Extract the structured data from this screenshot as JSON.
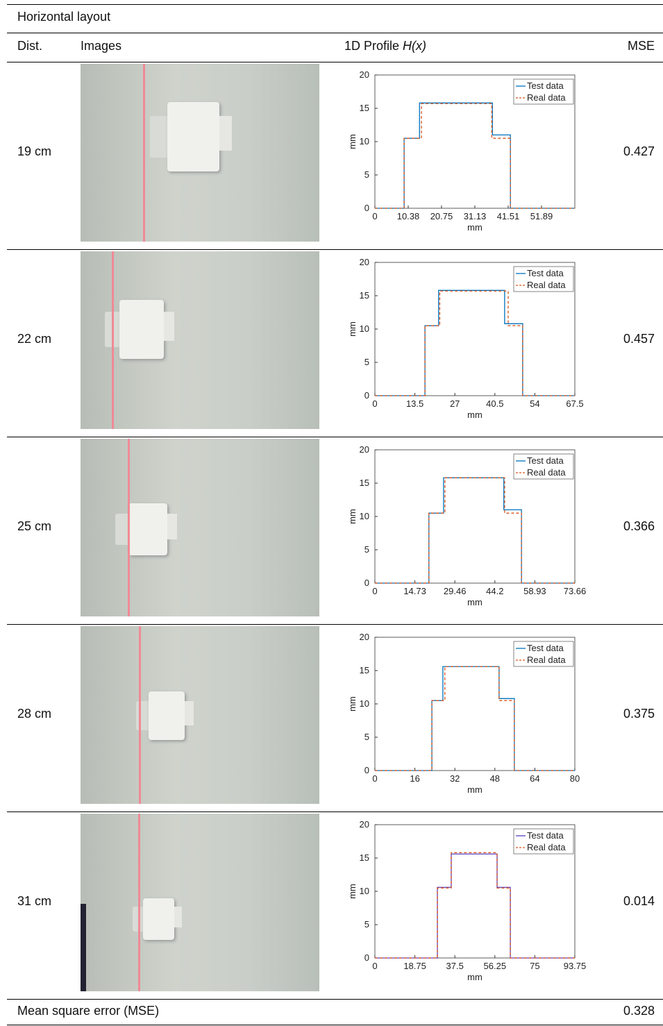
{
  "header": {
    "title": "Horizontal layout"
  },
  "columns": {
    "dist": "Dist.",
    "images": "Images",
    "profile": "1D Profile",
    "profile_symbol": "H(x)",
    "mse": "MSE"
  },
  "table": {
    "rows": [
      {
        "dist": "19 cm",
        "mse": 0.427,
        "profile": {
          "type": "line",
          "xlabel": "mm",
          "ylabel": "mm",
          "xlim": [
            0,
            62.27
          ],
          "ylim": [
            0,
            20
          ],
          "xticks": [
            0,
            10.38,
            20.75,
            31.13,
            41.51,
            51.89
          ],
          "yticks": [
            0,
            5,
            10,
            15,
            20
          ],
          "series": [
            {
              "name": "Test data",
              "color": "#0072bd",
              "dash": false,
              "x": [
                0,
                9.1,
                9.1,
                13.9,
                13.9,
                36.6,
                36.6,
                42.2,
                42.2,
                62.27
              ],
              "values": [
                0,
                0,
                10.5,
                10.5,
                15.8,
                15.8,
                11,
                11,
                0,
                0
              ]
            },
            {
              "name": "Real data",
              "color": "#d95319",
              "dash": true,
              "x": [
                0,
                9.1,
                9.1,
                14.5,
                14.5,
                36.4,
                36.4,
                42.2,
                42.2,
                62.27
              ],
              "values": [
                0,
                0,
                10.5,
                10.5,
                15.7,
                15.7,
                10.5,
                10.5,
                0,
                0
              ]
            }
          ]
        }
      },
      {
        "dist": "22 cm",
        "mse": 0.457,
        "profile": {
          "type": "line",
          "xlabel": "mm",
          "ylabel": "mm",
          "xlim": [
            0,
            67.5
          ],
          "ylim": [
            0,
            20
          ],
          "xticks": [
            0,
            13.5,
            27,
            40.5,
            54,
            67.5
          ],
          "yticks": [
            0,
            5,
            10,
            15,
            20
          ],
          "series": [
            {
              "name": "Test data",
              "color": "#0072bd",
              "dash": false,
              "x": [
                0,
                16.9,
                16.9,
                21.5,
                21.5,
                43.8,
                43.8,
                49.9,
                49.9,
                67.5
              ],
              "values": [
                0,
                0,
                10.5,
                10.5,
                15.8,
                15.8,
                10.8,
                10.8,
                0,
                0
              ]
            },
            {
              "name": "Real data",
              "color": "#d95319",
              "dash": true,
              "x": [
                0,
                16.9,
                16.9,
                21.9,
                21.9,
                45,
                45,
                49.9,
                49.9,
                67.5
              ],
              "values": [
                0,
                0,
                10.5,
                10.5,
                15.7,
                15.7,
                10.5,
                10.5,
                0,
                0
              ]
            }
          ]
        }
      },
      {
        "dist": "25 cm",
        "mse": 0.366,
        "profile": {
          "type": "line",
          "xlabel": "mm",
          "ylabel": "mm",
          "xlim": [
            0,
            73.66
          ],
          "ylim": [
            0,
            20
          ],
          "xticks": [
            0,
            14.73,
            29.46,
            44.2,
            58.93,
            73.66
          ],
          "yticks": [
            0,
            5,
            10,
            15,
            20
          ],
          "series": [
            {
              "name": "Test data",
              "color": "#0072bd",
              "dash": false,
              "x": [
                0,
                19.9,
                19.9,
                25.3,
                25.3,
                47.5,
                47.5,
                54,
                54,
                73.66
              ],
              "values": [
                0,
                0,
                10.5,
                10.5,
                15.8,
                15.8,
                11,
                11,
                0,
                0
              ]
            },
            {
              "name": "Real data",
              "color": "#d95319",
              "dash": true,
              "x": [
                0,
                19.9,
                19.9,
                25.8,
                25.8,
                47.8,
                47.8,
                54,
                54,
                73.66
              ],
              "values": [
                0,
                0,
                10.5,
                10.5,
                15.8,
                15.8,
                10.5,
                10.5,
                0,
                0
              ]
            }
          ]
        }
      },
      {
        "dist": "28 cm",
        "mse": 0.375,
        "profile": {
          "type": "line",
          "xlabel": "mm",
          "ylabel": "mm",
          "xlim": [
            0,
            80
          ],
          "ylim": [
            0,
            20
          ],
          "xticks": [
            0,
            16,
            32,
            48,
            64,
            80
          ],
          "yticks": [
            0,
            5,
            10,
            15,
            20
          ],
          "series": [
            {
              "name": "Test data",
              "color": "#0072bd",
              "dash": false,
              "x": [
                0,
                22.8,
                22.8,
                27.2,
                27.2,
                49.7,
                49.7,
                55.8,
                55.8,
                80
              ],
              "values": [
                0,
                0,
                10.5,
                10.5,
                15.6,
                15.6,
                10.8,
                10.8,
                0,
                0
              ]
            },
            {
              "name": "Real data",
              "color": "#d95319",
              "dash": true,
              "x": [
                0,
                22.8,
                22.8,
                28,
                28,
                49.7,
                49.7,
                55.8,
                55.8,
                80
              ],
              "values": [
                0,
                0,
                10.5,
                10.5,
                15.6,
                15.6,
                10.5,
                10.5,
                0,
                0
              ]
            }
          ]
        }
      },
      {
        "dist": "31 cm",
        "mse": 0.014,
        "profile": {
          "type": "line",
          "xlabel": "mm",
          "ylabel": "mm",
          "xlim": [
            0,
            93.75
          ],
          "ylim": [
            0,
            20
          ],
          "xticks": [
            0,
            18.75,
            37.5,
            56.25,
            75,
            93.75
          ],
          "yticks": [
            0,
            5,
            10,
            15,
            20
          ],
          "series": [
            {
              "name": "Test data",
              "color": "#5a3fc0",
              "dash": false,
              "x": [
                0,
                29.3,
                29.3,
                35.8,
                35.8,
                57.3,
                57.3,
                63.5,
                63.5,
                93.75
              ],
              "values": [
                0,
                0,
                10.6,
                10.6,
                15.6,
                15.6,
                10.6,
                10.6,
                0,
                0
              ]
            },
            {
              "name": "Real data",
              "color": "#d95319",
              "dash": true,
              "x": [
                0,
                29.3,
                29.3,
                35.8,
                35.8,
                57.3,
                57.3,
                63.5,
                63.5,
                93.75
              ],
              "values": [
                0,
                0,
                10.5,
                10.5,
                15.8,
                15.8,
                10.5,
                10.5,
                0,
                0
              ]
            }
          ]
        }
      }
    ]
  },
  "footer": {
    "label": "Mean square error (MSE)",
    "value": 0.328
  }
}
